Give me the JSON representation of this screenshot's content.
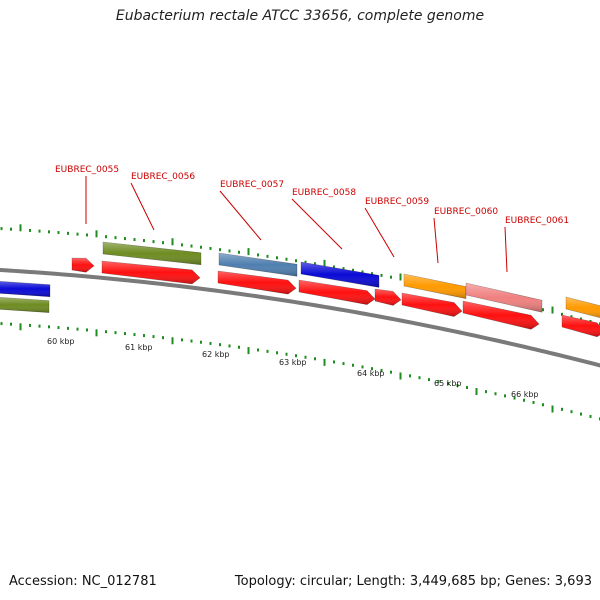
{
  "title": "Eubacterium rectale ATCC 33656, complete genome",
  "footer": {
    "accession": "Accession: NC_012781",
    "summary": "Topology: circular; Length: 3,449,685 bp; Genes: 3,693"
  },
  "colors": {
    "backbone": "#7a7a7a",
    "tick": "#1e8c1e",
    "gene_red": "#ff1010",
    "label": "#cc0000",
    "green": "#6e8c22",
    "steelblue": "#4f7fb0",
    "blue": "#0a0ad6",
    "orange": "#ff9a00",
    "pink": "#f08080"
  },
  "scale_labels": [
    "60 kbp",
    "61 kbp",
    "62 kbp",
    "63 kbp",
    "64 kbp",
    "65 kbp",
    "66 kbp"
  ],
  "gene_labels": [
    "EUBREC_0055",
    "EUBREC_0056",
    "EUBREC_0057",
    "EUBREC_0058",
    "EUBREC_0059",
    "EUBREC_0060",
    "EUBREC_0061"
  ],
  "cog_genes": [
    {
      "color": "blue"
    },
    {
      "color": "green"
    },
    {
      "color": "green"
    },
    {
      "color": "steelblue"
    },
    {
      "color": "blue"
    },
    {
      "color": "orange"
    },
    {
      "color": "pink"
    },
    {
      "color": "orange"
    }
  ]
}
